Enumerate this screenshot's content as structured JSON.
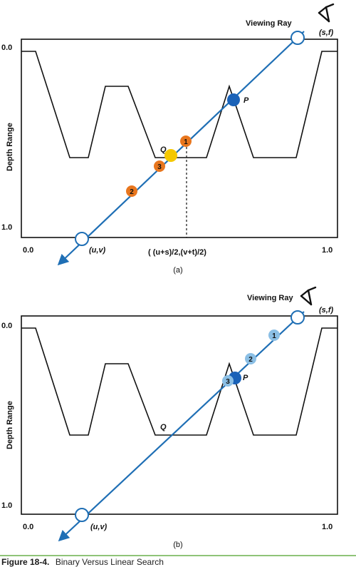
{
  "panel_a": {
    "ray_label": "Viewing Ray",
    "eye_label": "(s,f)",
    "origin_label": "(u,v)",
    "depth_axis_label": "Depth Range",
    "depth_top": "0.0",
    "depth_bottom": "1.0",
    "x_left": "0.0",
    "x_right": "1.0",
    "midpoint_label": "( (u+s)/2,(v+t)/2)",
    "q_label": "Q",
    "p_label": "P",
    "samples": [
      "1",
      "2",
      "3"
    ],
    "sub_caption": "(a)"
  },
  "panel_b": {
    "ray_label": "Viewing Ray",
    "eye_label": "(s,f)",
    "origin_label": "(u,v)",
    "depth_axis_label": "Depth Range",
    "depth_top": "0.0",
    "depth_bottom": "1.0",
    "x_left": "0.0",
    "x_right": "1.0",
    "q_label": "Q",
    "p_label": "P",
    "samples": [
      "1",
      "2",
      "3"
    ],
    "sub_caption": "(b)"
  },
  "caption": {
    "figure_number": "Figure 18-4.",
    "title": "Binary Versus Linear Search"
  },
  "colors": {
    "ray": "#1f6fb5",
    "orange_sample": "#e8761e",
    "yellow_q": "#f5c800",
    "dark_blue_p": "#1a62b8",
    "light_blue_sample": "#8bbfe5",
    "caption_rule": "#6ab04c"
  }
}
